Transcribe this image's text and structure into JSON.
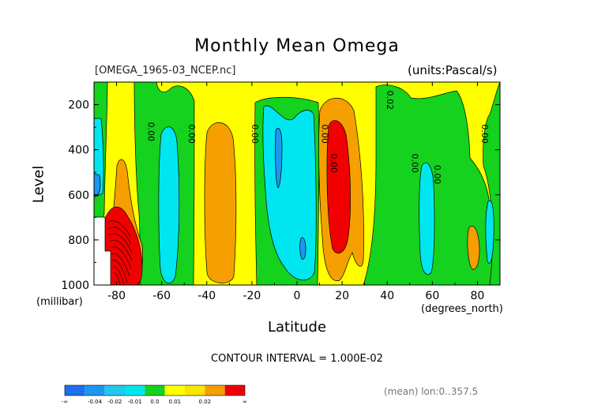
{
  "chart_data": {
    "type": "contour",
    "title": "Monthly Mean Omega",
    "file_label": "[OMEGA_1965-03_NCEP.nc]",
    "units_label": "(units:Pascal/s)",
    "xlabel": "Latitude",
    "x_unit": "(degrees_north)",
    "ylabel": "Level",
    "y_unit": "(millibar)",
    "xlim": [
      -90,
      90
    ],
    "ylim": [
      1000,
      100
    ],
    "x_ticks": [
      "-80",
      "-60",
      "-40",
      "-20",
      "0",
      "20",
      "40",
      "60",
      "80"
    ],
    "x_tick_values": [
      -80,
      -60,
      -40,
      -20,
      0,
      20,
      40,
      60,
      80
    ],
    "y_ticks": [
      "200",
      "400",
      "600",
      "800",
      "1000"
    ],
    "y_tick_values": [
      200,
      400,
      600,
      800,
      1000
    ],
    "contour_interval": "CONTOUR INTERVAL = 1.000E-02",
    "contour_labels": [
      "0.00",
      "0.00",
      "0.00",
      "0.00",
      "0.00",
      "0.02",
      "0.00",
      "0.00",
      "0.00"
    ],
    "colorbar": {
      "labels": [
        "-∞",
        "-0.04",
        "-0.02",
        "-0.01",
        "0.0",
        "0.01",
        "0.02",
        "∞"
      ],
      "colors": [
        "#1e6ef0",
        "#1e96f0",
        "#23c8f0",
        "#00e6f0",
        "#14d21e",
        "#ffff00",
        "#fae600",
        "#f5a000",
        "#f00000"
      ]
    },
    "regions": [
      {
        "name": "background (0.00 to 0.01)",
        "value_range": [
          0.0,
          0.01
        ],
        "color": "#ffff00"
      },
      {
        "name": "green band (-0.01 to 0.00)",
        "value_range": [
          -0.01,
          0.0
        ],
        "color": "#14d21e"
      },
      {
        "name": "cyan (-0.02 to -0.01)",
        "value_range": [
          -0.02,
          -0.01
        ],
        "color": "#23c8f0"
      },
      {
        "name": "blue (-0.04 to -0.02)",
        "value_range": [
          -0.04,
          -0.02
        ],
        "color": "#1e96f0"
      },
      {
        "name": "orange (0.01 to 0.02)",
        "value_range": [
          0.01,
          0.02
        ],
        "color": "#f5a000"
      },
      {
        "name": "red (> 0.02)",
        "value_range": [
          0.02,
          1
        ],
        "color": "#f00000"
      }
    ],
    "mean_note": "(mean) lon:0..357.5"
  }
}
